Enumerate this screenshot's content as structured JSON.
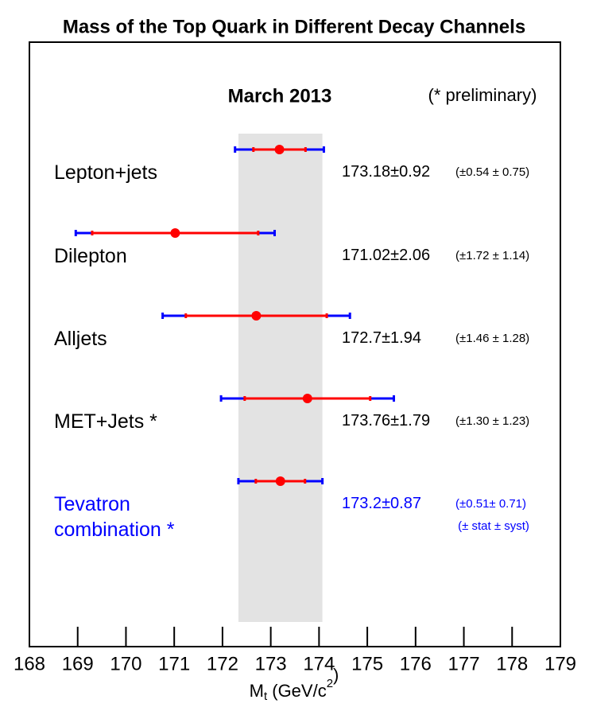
{
  "chart_data": {
    "type": "errorbar",
    "title": "Mass of the Top Quark in Different Decay Channels",
    "annotations": [
      "March 2013",
      "(* preliminary)",
      "(± stat ± syst)"
    ],
    "xlabel": [
      "M",
      "t",
      " (GeV/c",
      "2",
      ")"
    ],
    "categories": [
      "Lepton+jets",
      "Dilepton",
      "Alljets",
      "MET+Jets *",
      "Tevatron combination *"
    ],
    "label_colors": [
      "#000000",
      "#000000",
      "#000000",
      "#000000",
      "#0000ff"
    ],
    "values": [
      173.18,
      171.02,
      172.7,
      173.76,
      173.2
    ],
    "total_errors": [
      0.92,
      2.06,
      1.94,
      1.79,
      0.87
    ],
    "total_error_labels": [
      "±0.92",
      "±2.06",
      "±1.94",
      "±1.79",
      "±0.87"
    ],
    "stat_errors": [
      0.54,
      1.72,
      1.46,
      1.3,
      0.51
    ],
    "breakdown_labels": [
      "(±0.54 ± 0.75)",
      "(±1.72 ± 1.14)",
      "(±1.46 ± 1.28)",
      "(±1.30 ± 1.23)",
      "(±0.51± 0.71)"
    ],
    "band": [
      172.33,
      174.07
    ],
    "band_color": "#e3e3e3",
    "total_color": "#0000ff",
    "stat_color": "#ff0000",
    "xlim": [
      168,
      179
    ],
    "xticks": [
      168,
      169,
      170,
      171,
      172,
      173,
      174,
      175,
      176,
      177,
      178,
      179
    ]
  }
}
